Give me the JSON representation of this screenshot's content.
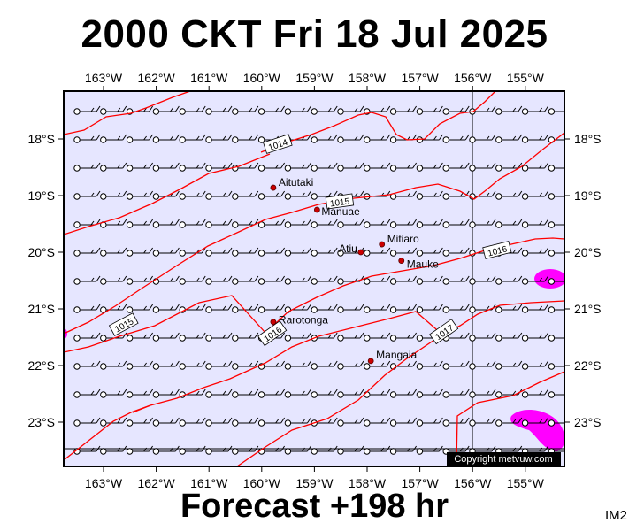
{
  "header": {
    "title": "2000 CKT Fri 18 Jul 2025"
  },
  "footer": {
    "forecast": "Forecast +198 hr",
    "product_code": "IM2"
  },
  "map": {
    "lon_ticks": [
      {
        "lon": -163,
        "label": "163°W"
      },
      {
        "lon": -162,
        "label": "162°W"
      },
      {
        "lon": -161,
        "label": "161°W"
      },
      {
        "lon": -160,
        "label": "160°W"
      },
      {
        "lon": -159,
        "label": "159°W"
      },
      {
        "lon": -158,
        "label": "158°W"
      },
      {
        "lon": -157,
        "label": "157°W"
      },
      {
        "lon": -156,
        "label": "156°W"
      },
      {
        "lon": -155,
        "label": "155°W"
      }
    ],
    "lat_ticks": [
      {
        "lat": -18,
        "label": "18°S"
      },
      {
        "lat": -19,
        "label": "19°S"
      },
      {
        "lat": -20,
        "label": "20°S"
      },
      {
        "lat": -21,
        "label": "21°S"
      },
      {
        "lat": -22,
        "label": "22°S"
      },
      {
        "lat": -23,
        "label": "23°S"
      }
    ],
    "places": [
      {
        "name": "Aitutaki",
        "lon": -159.78,
        "lat": -18.86
      },
      {
        "name": "Manuae",
        "lon": -158.95,
        "lat": -19.25
      },
      {
        "name": "Mitiaro",
        "lon": -157.72,
        "lat": -19.86
      },
      {
        "name": "Atiu",
        "lon": -158.12,
        "lat": -20.0
      },
      {
        "name": "Mauke",
        "lon": -157.35,
        "lat": -20.15
      },
      {
        "name": "Rarotonga",
        "lon": -159.78,
        "lat": -21.23
      },
      {
        "name": "Mangaia",
        "lon": -157.93,
        "lat": -21.92
      }
    ],
    "isobar_labels": [
      "1014",
      "1015",
      "1015",
      "1016",
      "1016",
      "1017"
    ],
    "copyright": "Copyright metvuw.com",
    "colors": {
      "ocean": "#e6e6ff",
      "isobar": "#ff0000",
      "precip": "#ff00ff",
      "frame": "#000000"
    }
  }
}
